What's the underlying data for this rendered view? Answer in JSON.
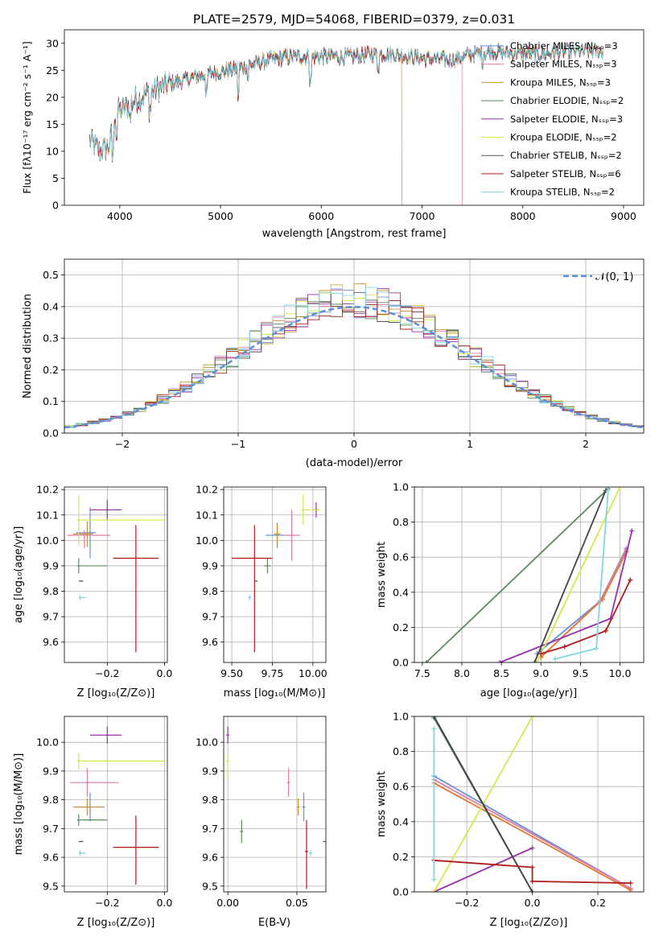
{
  "figure_title": "PLATE=2579, MJD=54068, FIBERID=0379, z=0.031",
  "chart_data": [
    {
      "type": "line",
      "panel": "spectrum",
      "xlabel": "wavelength [Angstrom, rest frame]",
      "ylabel": "Flux [fλ10⁻¹⁷ erg cm⁻² s⁻¹ A⁻¹]",
      "xlim": [
        3450,
        9200
      ],
      "ylim": [
        0,
        32.5
      ],
      "xticks": [
        4000,
        5000,
        6000,
        7000,
        8000,
        9000
      ],
      "yticks": [
        0,
        5,
        10,
        15,
        20,
        25,
        30
      ],
      "grid": false,
      "legend_position": "top-right",
      "legend": [
        "Chabrier MILES, Nₛₛₚ=3",
        "Salpeter MILES, Nₛₛₚ=3",
        "Kroupa MILES, Nₛₛₚ=3",
        "Chabrier ELODIE, Nₛₛₚ=2",
        "Salpeter ELODIE, Nₛₛₚ=3",
        "Kroupa ELODIE, Nₛₛₚ=2",
        "Chabrier STELIB, Nₛₛₚ=2",
        "Salpeter STELIB, Nₛₛₚ=6",
        "Kroupa STELIB, Nₛₛₚ=2"
      ],
      "colors": [
        "#6b8ed6",
        "#e07aa6",
        "#c89430",
        "#5e8a5e",
        "#9b2fae",
        "#d6e84a",
        "#555555",
        "#b31b1b",
        "#7fd6e3"
      ],
      "continuum": [
        [
          3700,
          12
        ],
        [
          3800,
          10
        ],
        [
          3900,
          11
        ],
        [
          3950,
          17
        ],
        [
          4050,
          18
        ],
        [
          4150,
          19.5
        ],
        [
          4300,
          21
        ],
        [
          4500,
          22.5
        ],
        [
          4700,
          23.5
        ],
        [
          4900,
          24.5
        ],
        [
          5100,
          25
        ],
        [
          5300,
          26
        ],
        [
          5500,
          27
        ],
        [
          5700,
          27.5
        ],
        [
          5900,
          27.5
        ],
        [
          6100,
          27.5
        ],
        [
          6300,
          27.5
        ],
        [
          6500,
          28
        ],
        [
          6700,
          28
        ],
        [
          6900,
          27.5
        ],
        [
          7100,
          27
        ],
        [
          7300,
          27
        ],
        [
          7500,
          28
        ],
        [
          7700,
          28.5
        ],
        [
          8000,
          28
        ],
        [
          8200,
          28
        ],
        [
          8400,
          28.5
        ],
        [
          8600,
          28.5
        ],
        [
          8800,
          28.5
        ]
      ],
      "drops": [
        {
          "series": 2,
          "wavelength": 6800
        },
        {
          "series": 1,
          "wavelength": 7400
        }
      ]
    },
    {
      "type": "histogram",
      "panel": "residuals",
      "xlabel": "(data-model)/error",
      "ylabel": "Normed distribution",
      "xlim": [
        -2.5,
        2.5
      ],
      "ylim": [
        0,
        0.55
      ],
      "xticks": [
        -2,
        -1,
        0,
        1,
        2
      ],
      "yticks": [
        0.0,
        0.1,
        0.2,
        0.3,
        0.4,
        0.5
      ],
      "grid": true,
      "legend_position": "top-right",
      "legend": [
        "𝒩(0, 1)"
      ],
      "reference_curve": {
        "type": "normal",
        "mean": 0,
        "sigma": 1,
        "style": "dashed",
        "color": "#5b8fd6"
      },
      "bin_width": 0.1
    },
    {
      "type": "scatter",
      "panel": "age-vs-Z",
      "xlabel": "Z [log₁₀(Z/Z⊙)]",
      "ylabel": "age  [log₁₀(age/yr)]",
      "xlim": [
        -0.35,
        0.01
      ],
      "ylim": [
        9.52,
        10.21
      ],
      "xticks": [
        -0.2,
        0.0
      ],
      "yticks": [
        9.6,
        9.7,
        9.8,
        9.9,
        10.0,
        10.1,
        10.2
      ],
      "grid": true,
      "points": [
        {
          "x": -0.26,
          "y": 10.03,
          "xerr": [
            0.05,
            0.02
          ],
          "yerr": [
            0.1,
            0.1
          ],
          "color": "#6b8ed6"
        },
        {
          "x": -0.28,
          "y": 10.02,
          "xerr": [
            0.06,
            0.09
          ],
          "yerr": [
            0.05,
            0.02
          ],
          "color": "#e07aa6"
        },
        {
          "x": -0.27,
          "y": 10.025,
          "xerr": [
            0.05,
            0.02
          ],
          "yerr": [
            0.05,
            0.05
          ],
          "color": "#c89430"
        },
        {
          "x": -0.3,
          "y": 9.9,
          "xerr": [
            0.0,
            0.1
          ],
          "yerr": [
            0.03,
            0.03
          ],
          "color": "#5e8a5e"
        },
        {
          "x": -0.2,
          "y": 10.12,
          "xerr": [
            0.06,
            0.05
          ],
          "yerr": [
            0.04,
            0.04
          ],
          "color": "#9b2fae"
        },
        {
          "x": -0.3,
          "y": 10.08,
          "xerr": [
            0.0,
            0.3
          ],
          "yerr": [
            0.1,
            0.1
          ],
          "color": "#d6e84a"
        },
        {
          "x": -0.29,
          "y": 9.84,
          "xerr": [
            0.01,
            0.005
          ],
          "yerr": [
            0.0,
            0.0
          ],
          "color": "#555555"
        },
        {
          "x": -0.1,
          "y": 9.93,
          "xerr": [
            0.08,
            0.08
          ],
          "yerr": [
            0.37,
            0.13
          ],
          "color": "#b31b1b"
        },
        {
          "x": -0.295,
          "y": 9.775,
          "xerr": [
            0.005,
            0.02
          ],
          "yerr": [
            0.01,
            0.01
          ],
          "color": "#7fd6e3"
        }
      ]
    },
    {
      "type": "scatter",
      "panel": "age-vs-mass",
      "xlabel": "mass [log₁₀(M/M⊙)]",
      "ylabel": "",
      "xlim": [
        9.45,
        10.08
      ],
      "ylim": [
        9.52,
        10.21
      ],
      "xticks": [
        9.5,
        9.75,
        10.0
      ],
      "yticks": [
        9.6,
        9.7,
        9.8,
        9.9,
        10.0,
        10.1,
        10.2
      ],
      "grid": true,
      "points": [
        {
          "x": 9.78,
          "y": 10.02,
          "xerr": [
            0.07,
            0.04
          ],
          "yerr": [
            0.05,
            0.05
          ],
          "color": "#6b8ed6"
        },
        {
          "x": 9.87,
          "y": 10.02,
          "xerr": [
            0.05,
            0.05
          ],
          "yerr": [
            0.1,
            0.1
          ],
          "color": "#e07aa6"
        },
        {
          "x": 9.78,
          "y": 10.025,
          "xerr": [
            0.02,
            0.02
          ],
          "yerr": [
            0.04,
            0.04
          ],
          "color": "#c89430"
        },
        {
          "x": 9.72,
          "y": 9.9,
          "xerr": [
            0.02,
            0.02
          ],
          "yerr": [
            0.03,
            0.03
          ],
          "color": "#5e8a5e"
        },
        {
          "x": 10.02,
          "y": 10.12,
          "xerr": [
            0.02,
            0.02
          ],
          "yerr": [
            0.03,
            0.03
          ],
          "color": "#9b2fae"
        },
        {
          "x": 9.94,
          "y": 10.12,
          "xerr": [
            0.0,
            0.1
          ],
          "yerr": [
            0.06,
            0.06
          ],
          "color": "#d6e84a"
        },
        {
          "x": 9.65,
          "y": 9.84,
          "xerr": [
            0.005,
            0.005
          ],
          "yerr": [
            0.0,
            0.0
          ],
          "color": "#555555"
        },
        {
          "x": 9.64,
          "y": 9.93,
          "xerr": [
            0.14,
            0.11
          ],
          "yerr": [
            0.37,
            0.13
          ],
          "color": "#b31b1b"
        },
        {
          "x": 9.61,
          "y": 9.775,
          "xerr": [
            0.01,
            0.01
          ],
          "yerr": [
            0.01,
            0.01
          ],
          "color": "#7fd6e3"
        }
      ]
    },
    {
      "type": "line",
      "panel": "mass-weight-vs-age",
      "xlabel": "age  [log₁₀(age/yr)]",
      "ylabel": "mass weight",
      "xlim": [
        7.4,
        10.3
      ],
      "ylim": [
        0,
        1.0
      ],
      "xticks": [
        7.5,
        8.0,
        8.5,
        9.0,
        9.5,
        10.0
      ],
      "yticks": [
        0.0,
        0.2,
        0.4,
        0.6,
        0.8,
        1.0
      ],
      "grid": true,
      "series": [
        {
          "x": [
            8.95,
            9.75,
            10.08
          ],
          "y": [
            0.05,
            0.35,
            0.65
          ],
          "color": "#6b8ed6"
        },
        {
          "x": [
            9.0,
            9.75,
            10.08
          ],
          "y": [
            0.03,
            0.35,
            0.64
          ],
          "color": "#e07aa6"
        },
        {
          "x": [
            9.0,
            9.78,
            10.08
          ],
          "y": [
            0.03,
            0.36,
            0.63
          ],
          "color": "#e2782f"
        },
        {
          "x": [
            7.55,
            9.85
          ],
          "y": [
            0.0,
            0.99
          ],
          "color": "#5e8a5e"
        },
        {
          "x": [
            8.48,
            9.88,
            10.15
          ],
          "y": [
            0.0,
            0.25,
            0.75
          ],
          "color": "#9b2fae"
        },
        {
          "x": [
            8.95,
            10.0
          ],
          "y": [
            0.0,
            1.0
          ],
          "color": "#d6e84a"
        },
        {
          "x": [
            8.92,
            9.82
          ],
          "y": [
            0.0,
            0.98
          ],
          "color": "#444444"
        },
        {
          "x": [
            9.0,
            9.3,
            9.82,
            10.13
          ],
          "y": [
            0.05,
            0.09,
            0.18,
            0.47
          ],
          "color": "#b31b1b"
        },
        {
          "x": [
            9.18,
            9.7,
            9.85
          ],
          "y": [
            0.02,
            0.08,
            0.98
          ],
          "color": "#7fd6e3"
        }
      ]
    },
    {
      "type": "scatter",
      "panel": "mass-vs-Z",
      "xlabel": "Z [log₁₀(Z/Z⊙)]",
      "ylabel": "mass [log₁₀(M/M⊙)]",
      "xlim": [
        -0.35,
        0.01
      ],
      "ylim": [
        9.48,
        10.09
      ],
      "xticks": [
        -0.2,
        0.0
      ],
      "yticks": [
        9.5,
        9.6,
        9.7,
        9.8,
        9.9,
        10.0
      ],
      "grid": true,
      "points": [
        {
          "x": -0.26,
          "y": 9.775,
          "xerr": [
            0.05,
            0.05
          ],
          "yerr": [
            0.05,
            0.05
          ],
          "color": "#6b8ed6"
        },
        {
          "x": -0.27,
          "y": 9.86,
          "xerr": [
            0.06,
            0.11
          ],
          "yerr": [
            0.05,
            0.05
          ],
          "color": "#e07aa6"
        },
        {
          "x": -0.27,
          "y": 9.775,
          "xerr": [
            0.05,
            0.05
          ],
          "yerr": [
            0.03,
            0.03
          ],
          "color": "#c89430"
        },
        {
          "x": -0.3,
          "y": 9.73,
          "xerr": [
            0.0,
            0.1
          ],
          "yerr": [
            0.02,
            0.02
          ],
          "color": "#5e8a5e"
        },
        {
          "x": -0.2,
          "y": 10.025,
          "xerr": [
            0.06,
            0.05
          ],
          "yerr": [
            0.03,
            0.03
          ],
          "color": "#9b2fae"
        },
        {
          "x": -0.3,
          "y": 9.935,
          "xerr": [
            0.0,
            0.3
          ],
          "yerr": [
            0.03,
            0.03
          ],
          "color": "#d6e84a"
        },
        {
          "x": -0.29,
          "y": 9.655,
          "xerr": [
            0.01,
            0.005
          ],
          "yerr": [
            0.0,
            0.0
          ],
          "color": "#555555"
        },
        {
          "x": -0.1,
          "y": 9.635,
          "xerr": [
            0.08,
            0.08
          ],
          "yerr": [
            0.13,
            0.11
          ],
          "color": "#b31b1b"
        },
        {
          "x": -0.295,
          "y": 9.615,
          "xerr": [
            0.005,
            0.02
          ],
          "yerr": [
            0.01,
            0.01
          ],
          "color": "#7fd6e3"
        }
      ]
    },
    {
      "type": "scatter",
      "panel": "mass-vs-EBV",
      "xlabel": "E(B-V)",
      "ylabel": "",
      "xlim": [
        -0.003,
        0.071
      ],
      "ylim": [
        9.48,
        10.09
      ],
      "xticks": [
        0.0,
        0.05
      ],
      "yticks": [
        9.5,
        9.6,
        9.7,
        9.8,
        9.9,
        10.0
      ],
      "grid": true,
      "points": [
        {
          "x": 0.055,
          "y": 9.775,
          "yerr": [
            0.05,
            0.05
          ],
          "color": "#6b8ed6"
        },
        {
          "x": 0.044,
          "y": 9.86,
          "yerr": [
            0.05,
            0.05
          ],
          "color": "#e07aa6"
        },
        {
          "x": 0.051,
          "y": 9.775,
          "yerr": [
            0.03,
            0.03
          ],
          "color": "#c89430"
        },
        {
          "x": 0.01,
          "y": 9.69,
          "yerr": [
            0.04,
            0.04
          ],
          "color": "#5e8a5e"
        },
        {
          "x": 0.0,
          "y": 10.025,
          "yerr": [
            0.03,
            0.03
          ],
          "color": "#9b2fae"
        },
        {
          "x": 0.0,
          "y": 9.935,
          "yerr": [
            0.06,
            0.03
          ],
          "color": "#d6e84a"
        },
        {
          "x": 0.07,
          "y": 9.655,
          "yerr": [
            0.0,
            0.0
          ],
          "color": "#555555"
        },
        {
          "x": 0.057,
          "y": 9.62,
          "yerr": [
            0.13,
            0.11
          ],
          "color": "#b31b1b"
        },
        {
          "x": 0.06,
          "y": 9.615,
          "yerr": [
            0.01,
            0.01
          ],
          "color": "#7fd6e3"
        }
      ]
    },
    {
      "type": "line",
      "panel": "mass-weight-vs-Z",
      "xlabel": "Z [log₁₀(Z/Z⊙)]",
      "ylabel": "mass weight",
      "xlim": [
        -0.36,
        0.34
      ],
      "ylim": [
        0,
        1.0
      ],
      "xticks": [
        -0.2,
        0.0,
        0.2
      ],
      "yticks": [
        0.0,
        0.2,
        0.4,
        0.6,
        0.8,
        1.0
      ],
      "grid": true,
      "series": [
        {
          "x": [
            -0.3,
            0.3
          ],
          "y": [
            0.66,
            0.02
          ],
          "color": "#6b8ed6"
        },
        {
          "x": [
            -0.3,
            0.3
          ],
          "y": [
            0.64,
            0.02
          ],
          "color": "#e07aa6"
        },
        {
          "x": [
            -0.3,
            0.3
          ],
          "y": [
            0.62,
            0.01
          ],
          "color": "#e2782f"
        },
        {
          "x": [
            -0.3,
            0.0
          ],
          "y": [
            0.99,
            0.0
          ],
          "color": "#5e8a5e"
        },
        {
          "x": [
            -0.3,
            0.0
          ],
          "y": [
            0.0,
            0.25
          ],
          "color": "#9b2fae"
        },
        {
          "x": [
            -0.3,
            0.0
          ],
          "y": [
            0.0,
            1.0
          ],
          "color": "#d6e84a"
        },
        {
          "x": [
            -0.3,
            0.0
          ],
          "y": [
            1.0,
            0.0
          ],
          "color": "#444444"
        },
        {
          "x": [
            -0.3,
            0.0,
            0.0,
            0.3
          ],
          "y": [
            0.18,
            0.14,
            0.06,
            0.05
          ],
          "color": "#b31b1b"
        },
        {
          "x": [
            -0.3,
            -0.3
          ],
          "y": [
            0.93,
            0.07
          ],
          "color": "#7fd6e3"
        }
      ]
    }
  ]
}
